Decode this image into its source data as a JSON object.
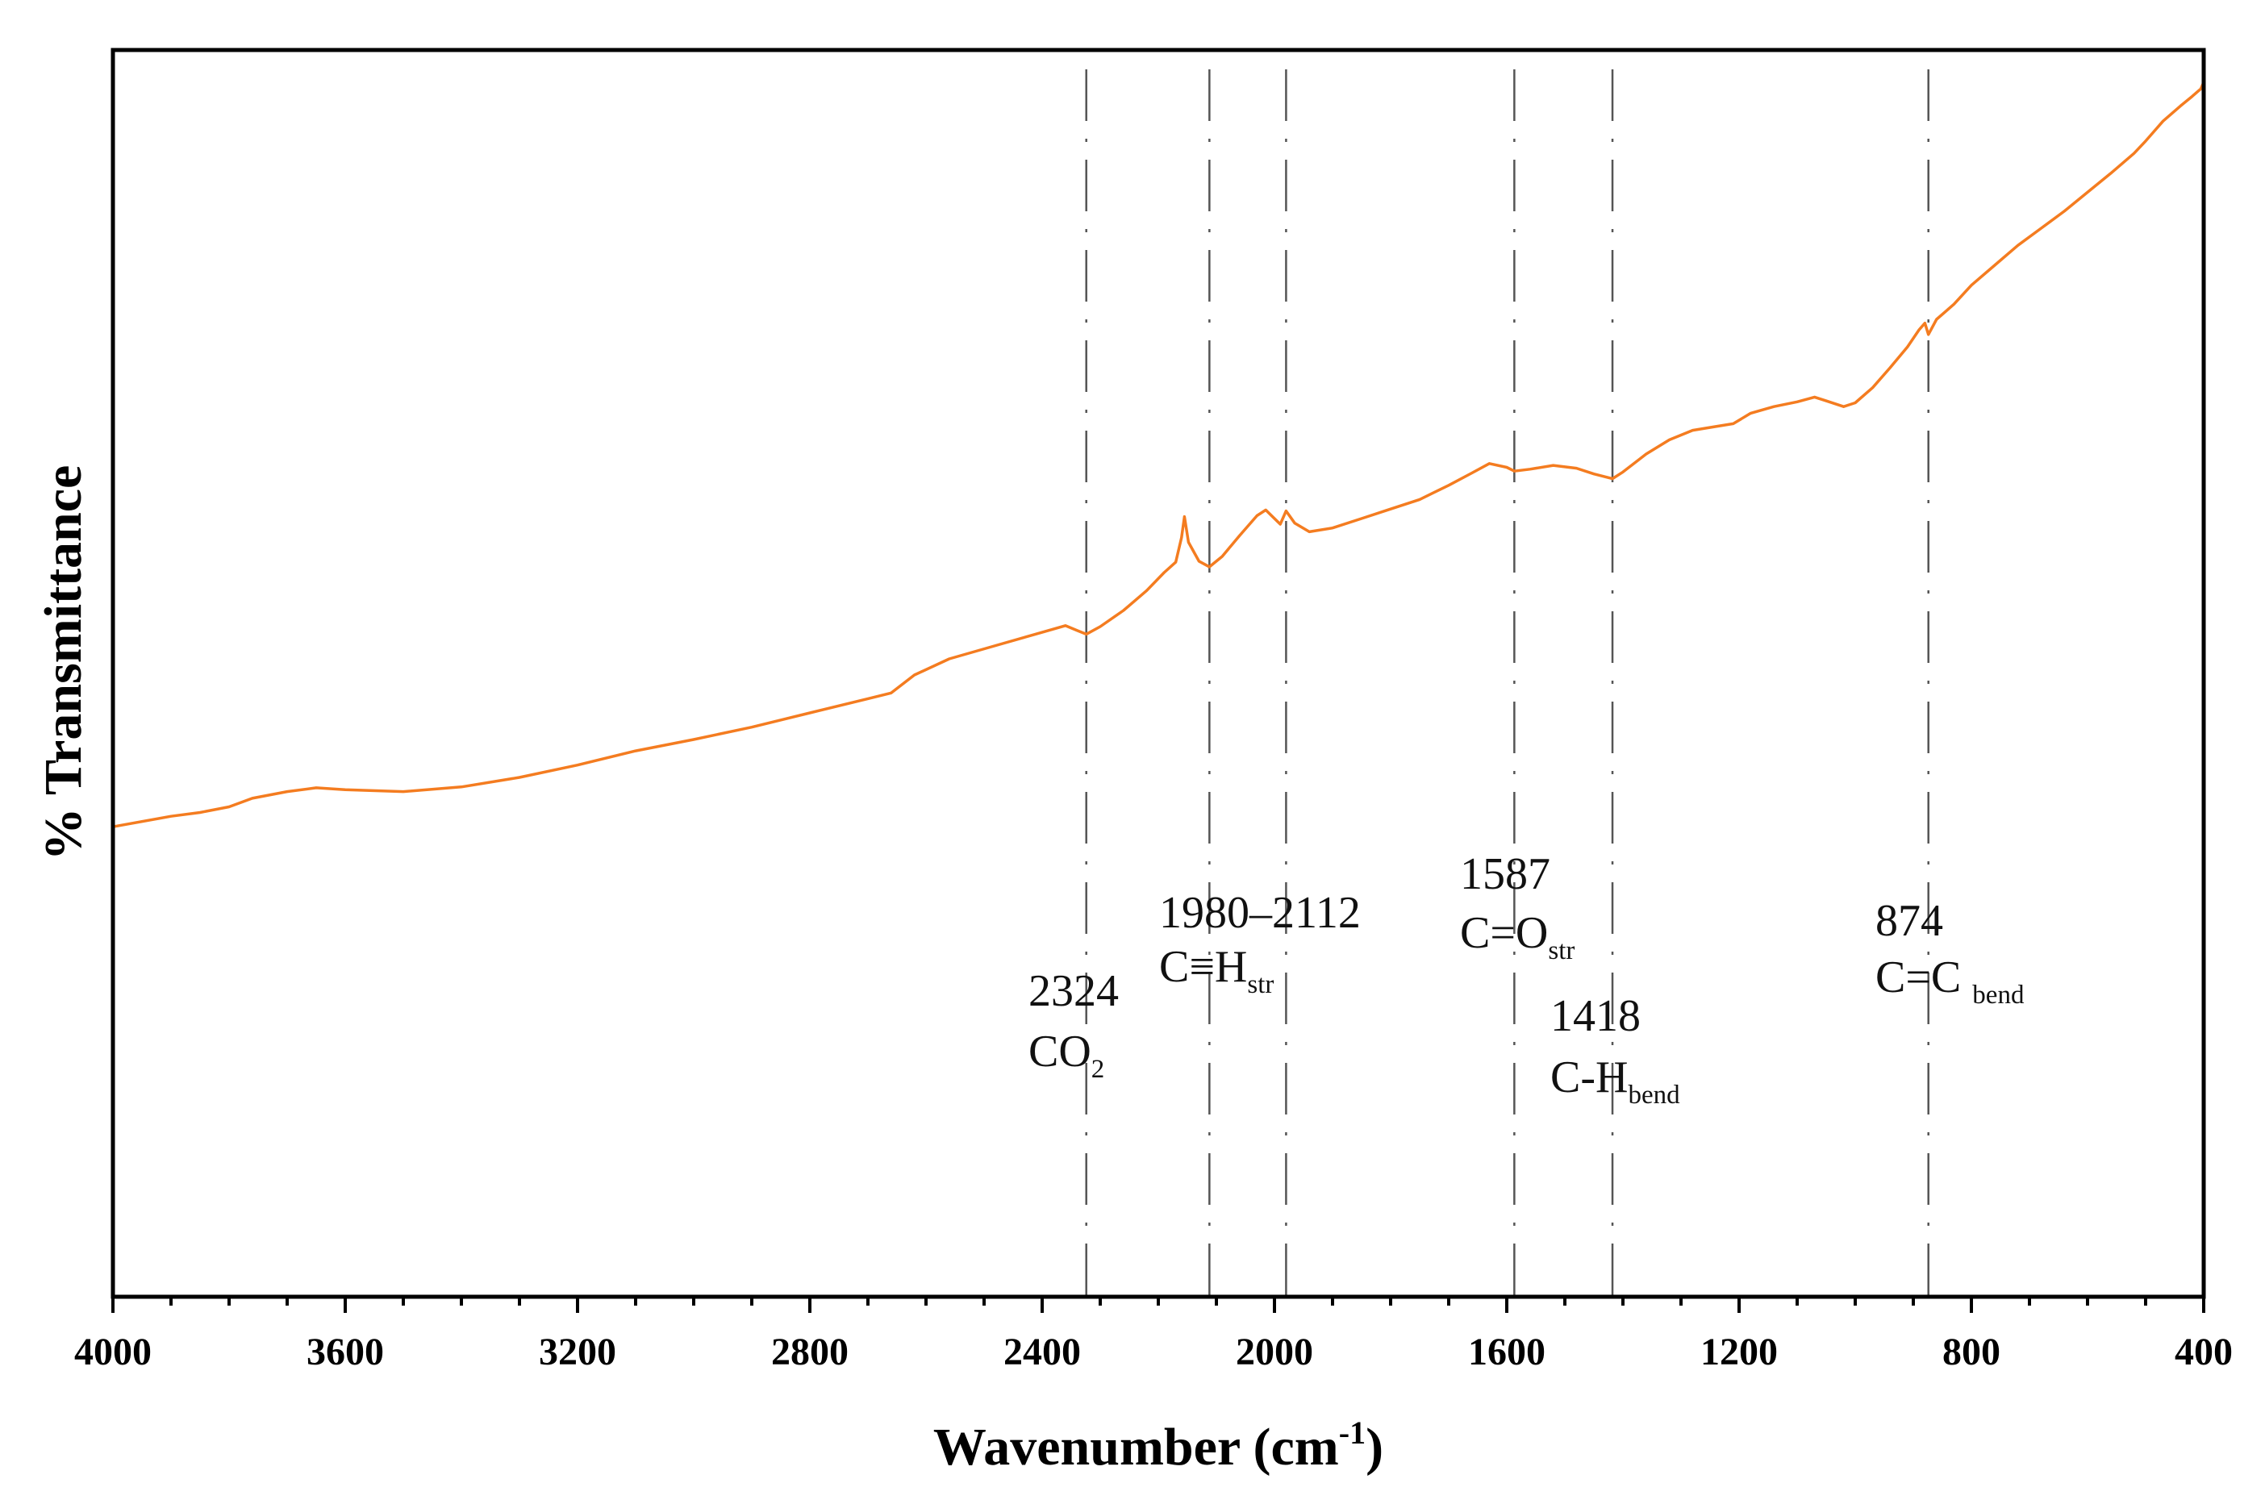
{
  "chart_data": {
    "type": "line",
    "title": "",
    "xlabel": "Wavenumber (cm",
    "xlabel_sup": "-1",
    "xlabel_close": ")",
    "ylabel": "% Transmittance",
    "xlim": [
      4000,
      400
    ],
    "ylim": [
      0,
      100
    ],
    "x_ticks": [
      4000,
      3600,
      3200,
      2800,
      2400,
      2000,
      1600,
      1200,
      800,
      400
    ],
    "y_ticks_labeled": false,
    "grid": false,
    "legend": "none",
    "series": [
      {
        "name": "FTIR spectrum",
        "color": "#f47c20",
        "points": [
          [
            4000,
            21.5
          ],
          [
            3900,
            22.6
          ],
          [
            3850,
            23.0
          ],
          [
            3800,
            23.6
          ],
          [
            3760,
            24.5
          ],
          [
            3700,
            25.2
          ],
          [
            3650,
            25.6
          ],
          [
            3600,
            25.4
          ],
          [
            3500,
            25.2
          ],
          [
            3400,
            25.7
          ],
          [
            3300,
            26.7
          ],
          [
            3200,
            28.0
          ],
          [
            3100,
            29.5
          ],
          [
            3000,
            30.7
          ],
          [
            2900,
            32.0
          ],
          [
            2800,
            33.5
          ],
          [
            2700,
            35.0
          ],
          [
            2660,
            35.6
          ],
          [
            2620,
            37.5
          ],
          [
            2560,
            39.2
          ],
          [
            2480,
            40.6
          ],
          [
            2400,
            42.0
          ],
          [
            2360,
            42.7
          ],
          [
            2340,
            42.2
          ],
          [
            2324,
            41.8
          ],
          [
            2300,
            42.6
          ],
          [
            2260,
            44.3
          ],
          [
            2220,
            46.4
          ],
          [
            2190,
            48.3
          ],
          [
            2170,
            49.4
          ],
          [
            2160,
            52.0
          ],
          [
            2155,
            54.2
          ],
          [
            2148,
            51.5
          ],
          [
            2130,
            49.5
          ],
          [
            2112,
            48.9
          ],
          [
            2090,
            50.0
          ],
          [
            2060,
            52.2
          ],
          [
            2030,
            54.3
          ],
          [
            2015,
            54.9
          ],
          [
            2000,
            54.0
          ],
          [
            1990,
            53.4
          ],
          [
            1980,
            54.8
          ],
          [
            1965,
            53.5
          ],
          [
            1940,
            52.6
          ],
          [
            1900,
            53.0
          ],
          [
            1850,
            54.0
          ],
          [
            1800,
            55.0
          ],
          [
            1750,
            56.0
          ],
          [
            1700,
            57.5
          ],
          [
            1660,
            58.8
          ],
          [
            1630,
            59.8
          ],
          [
            1600,
            59.4
          ],
          [
            1587,
            59.0
          ],
          [
            1560,
            59.2
          ],
          [
            1520,
            59.6
          ],
          [
            1480,
            59.3
          ],
          [
            1450,
            58.7
          ],
          [
            1418,
            58.2
          ],
          [
            1400,
            58.9
          ],
          [
            1360,
            60.8
          ],
          [
            1320,
            62.3
          ],
          [
            1280,
            63.3
          ],
          [
            1240,
            63.7
          ],
          [
            1210,
            64.0
          ],
          [
            1180,
            65.1
          ],
          [
            1140,
            65.8
          ],
          [
            1100,
            66.3
          ],
          [
            1070,
            66.8
          ],
          [
            1050,
            66.4
          ],
          [
            1020,
            65.8
          ],
          [
            1000,
            66.2
          ],
          [
            970,
            67.8
          ],
          [
            940,
            69.9
          ],
          [
            910,
            72.1
          ],
          [
            890,
            73.9
          ],
          [
            880,
            74.6
          ],
          [
            874,
            73.4
          ],
          [
            860,
            75.0
          ],
          [
            830,
            76.6
          ],
          [
            800,
            78.6
          ],
          [
            760,
            80.7
          ],
          [
            720,
            82.8
          ],
          [
            680,
            84.6
          ],
          [
            640,
            86.4
          ],
          [
            600,
            88.4
          ],
          [
            560,
            90.4
          ],
          [
            520,
            92.5
          ],
          [
            500,
            93.8
          ],
          [
            470,
            95.9
          ],
          [
            440,
            97.5
          ],
          [
            420,
            98.5
          ],
          [
            405,
            99.3
          ],
          [
            400,
            100.0
          ]
        ]
      }
    ],
    "annotations": [
      {
        "position": 2324,
        "label": "2324",
        "text": "CO",
        "sub": "2"
      },
      {
        "position": 2112,
        "label": "1980–2112",
        "text": "C≡H",
        "sub": "str"
      },
      {
        "position": 1980,
        "label": "",
        "text": "",
        "sub": ""
      },
      {
        "position": 1587,
        "label": "1587",
        "text": "C=O",
        "sub": "str"
      },
      {
        "position": 1418,
        "label": "1418",
        "text": "C-H",
        "sub": "bend"
      },
      {
        "position": 874,
        "label": "874",
        "text": "C=C ",
        "sub": "bend"
      }
    ]
  }
}
